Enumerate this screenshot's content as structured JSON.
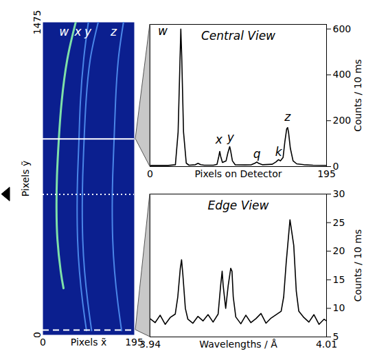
{
  "chart_data": [
    {
      "type": "image",
      "xlabel": "Pixels x̃",
      "ylabel": "Pixels ỹ",
      "xlim": [
        0,
        195
      ],
      "ylim": [
        0,
        1475
      ],
      "xticks": [
        0,
        195
      ],
      "yticks": [
        0,
        1475
      ],
      "color": "#0b1f8f",
      "series": [
        {
          "name": "w",
          "color": "#7ee0a8",
          "x": [
            70,
            52,
            40,
            34,
            30,
            29,
            31,
            38,
            44
          ],
          "y": [
            1475,
            1300,
            1100,
            925,
            750,
            600,
            450,
            300,
            220
          ]
        },
        {
          "name": "x",
          "color": "#4a86e8",
          "x": [
            97,
            87,
            80,
            77,
            74,
            73,
            74,
            78,
            85,
            93
          ],
          "y": [
            1475,
            1300,
            1100,
            925,
            750,
            600,
            450,
            300,
            150,
            20
          ]
        },
        {
          "name": "y",
          "color": "#4a86e8",
          "x": [
            118,
            101,
            92,
            88,
            85,
            84,
            85,
            89,
            96,
            104
          ],
          "y": [
            1475,
            1300,
            1100,
            925,
            750,
            600,
            450,
            300,
            150,
            20
          ]
        },
        {
          "name": "z",
          "color": "#4a86e8",
          "x": [
            172,
            161,
            155,
            152,
            149,
            148,
            149,
            153,
            160,
            168
          ],
          "y": [
            1475,
            1300,
            1100,
            925,
            750,
            600,
            450,
            300,
            150,
            20
          ]
        }
      ],
      "lines": [
        {
          "y": 925,
          "line_style": "solid"
        },
        {
          "y": 663,
          "line_style": "dotted"
        },
        {
          "y": 23,
          "line_style": "dashed"
        }
      ]
    },
    {
      "type": "line",
      "title": "Central View",
      "xlabel": "Pixels on Detector",
      "ylabel": "Counts / 10 ms",
      "xlim": [
        0,
        195
      ],
      "ylim": [
        0,
        620
      ],
      "xticks": [
        0,
        195
      ],
      "yticks": [
        0,
        200,
        400,
        600
      ],
      "color": "#000000",
      "x": [
        0,
        20,
        28,
        31,
        33,
        34,
        35,
        37,
        40,
        43,
        50,
        53,
        56,
        60,
        70,
        74,
        76,
        77,
        78,
        80,
        84,
        86,
        88,
        89,
        91,
        94,
        105,
        112,
        116,
        118,
        120,
        124,
        135,
        139,
        142,
        144,
        147,
        149,
        151,
        152,
        153,
        155,
        158,
        162,
        170,
        180,
        195
      ],
      "values": [
        5,
        5,
        8,
        150,
        450,
        600,
        480,
        150,
        15,
        6,
        8,
        14,
        8,
        6,
        6,
        10,
        45,
        66,
        45,
        18,
        25,
        60,
        87,
        70,
        25,
        8,
        7,
        8,
        15,
        20,
        14,
        8,
        10,
        20,
        30,
        25,
        40,
        110,
        165,
        170,
        150,
        80,
        25,
        12,
        8,
        6,
        5
      ],
      "annotations": [
        {
          "text": "w",
          "x": 14,
          "y": 590
        },
        {
          "text": "x",
          "x": 76,
          "y": 118
        },
        {
          "text": "y",
          "x": 89,
          "y": 125
        },
        {
          "text": "q",
          "x": 118,
          "y": 55
        },
        {
          "text": "k",
          "x": 142,
          "y": 62
        },
        {
          "text": "z",
          "x": 152,
          "y": 215
        }
      ]
    },
    {
      "type": "line",
      "title": "Edge View",
      "xlabel": "Wavelengths / Å",
      "ylabel": "Counts / 10 ms",
      "xlim": [
        3.94,
        4.01
      ],
      "ylim": [
        5,
        30
      ],
      "xticks": [
        3.94,
        4.01
      ],
      "yticks": [
        5,
        10,
        15,
        20,
        25,
        30
      ],
      "color": "#000000",
      "x": [
        3.94,
        3.942,
        3.944,
        3.946,
        3.948,
        3.95,
        3.951,
        3.952,
        3.9525,
        3.953,
        3.954,
        3.955,
        3.957,
        3.959,
        3.961,
        3.963,
        3.965,
        3.967,
        3.968,
        3.9686,
        3.969,
        3.97,
        3.971,
        3.972,
        3.9725,
        3.973,
        3.974,
        3.976,
        3.978,
        3.98,
        3.982,
        3.984,
        3.986,
        3.988,
        3.99,
        3.992,
        3.993,
        3.994,
        3.9955,
        3.997,
        3.998,
        3.999,
        4.001,
        4.003,
        4.005,
        4.007,
        4.009,
        4.01
      ],
      "values": [
        8.2,
        7.5,
        8.8,
        7.2,
        8.4,
        9,
        12,
        17,
        18.5,
        16,
        10,
        8.1,
        7.4,
        8.6,
        7.8,
        8.9,
        7.6,
        9,
        14,
        16.5,
        14,
        10,
        14,
        17,
        16.5,
        12,
        8.5,
        7.3,
        8.8,
        7.5,
        8.2,
        9.1,
        7.4,
        8.3,
        8.9,
        9.5,
        12,
        18,
        25.5,
        21,
        13,
        9.5,
        8.4,
        7.6,
        8.9,
        7.2,
        8.1,
        7.8
      ]
    }
  ]
}
